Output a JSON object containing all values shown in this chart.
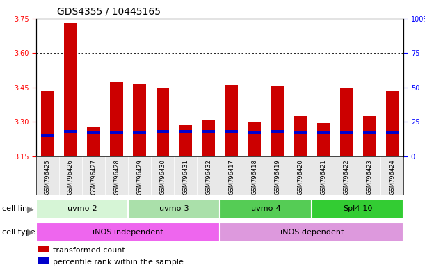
{
  "title": "GDS4355 / 10445165",
  "samples": [
    "GSM796425",
    "GSM796426",
    "GSM796427",
    "GSM796428",
    "GSM796429",
    "GSM796430",
    "GSM796431",
    "GSM796432",
    "GSM796417",
    "GSM796418",
    "GSM796419",
    "GSM796420",
    "GSM796421",
    "GSM796422",
    "GSM796423",
    "GSM796424"
  ],
  "transformed_count": [
    3.435,
    3.73,
    3.275,
    3.475,
    3.465,
    3.445,
    3.285,
    3.31,
    3.46,
    3.3,
    3.455,
    3.325,
    3.295,
    3.45,
    3.325,
    3.435
  ],
  "percentile_rank": [
    15,
    18,
    17,
    17,
    17,
    18,
    18,
    18,
    18,
    17,
    18,
    17,
    17,
    17,
    17,
    17
  ],
  "ylim_left": [
    3.15,
    3.75
  ],
  "ylim_right": [
    0,
    100
  ],
  "yticks_left": [
    3.15,
    3.3,
    3.45,
    3.6,
    3.75
  ],
  "yticks_right": [
    0,
    25,
    50,
    75,
    100
  ],
  "grid_values": [
    3.3,
    3.45,
    3.6
  ],
  "cell_line_groups": [
    {
      "label": "uvmo-2",
      "start": 0,
      "end": 3,
      "color": "#d6f5d6"
    },
    {
      "label": "uvmo-3",
      "start": 4,
      "end": 7,
      "color": "#aae0aa"
    },
    {
      "label": "uvmo-4",
      "start": 8,
      "end": 11,
      "color": "#55cc55"
    },
    {
      "label": "Spl4-10",
      "start": 12,
      "end": 15,
      "color": "#33cc33"
    }
  ],
  "cell_type_groups": [
    {
      "label": "iNOS independent",
      "start": 0,
      "end": 7,
      "color": "#ee66ee"
    },
    {
      "label": "iNOS dependent",
      "start": 8,
      "end": 15,
      "color": "#dd99dd"
    }
  ],
  "bar_color_red": "#cc0000",
  "bar_color_blue": "#0000cc",
  "bar_width": 0.55,
  "title_fontsize": 10,
  "tick_fontsize": 7,
  "label_fontsize": 8
}
